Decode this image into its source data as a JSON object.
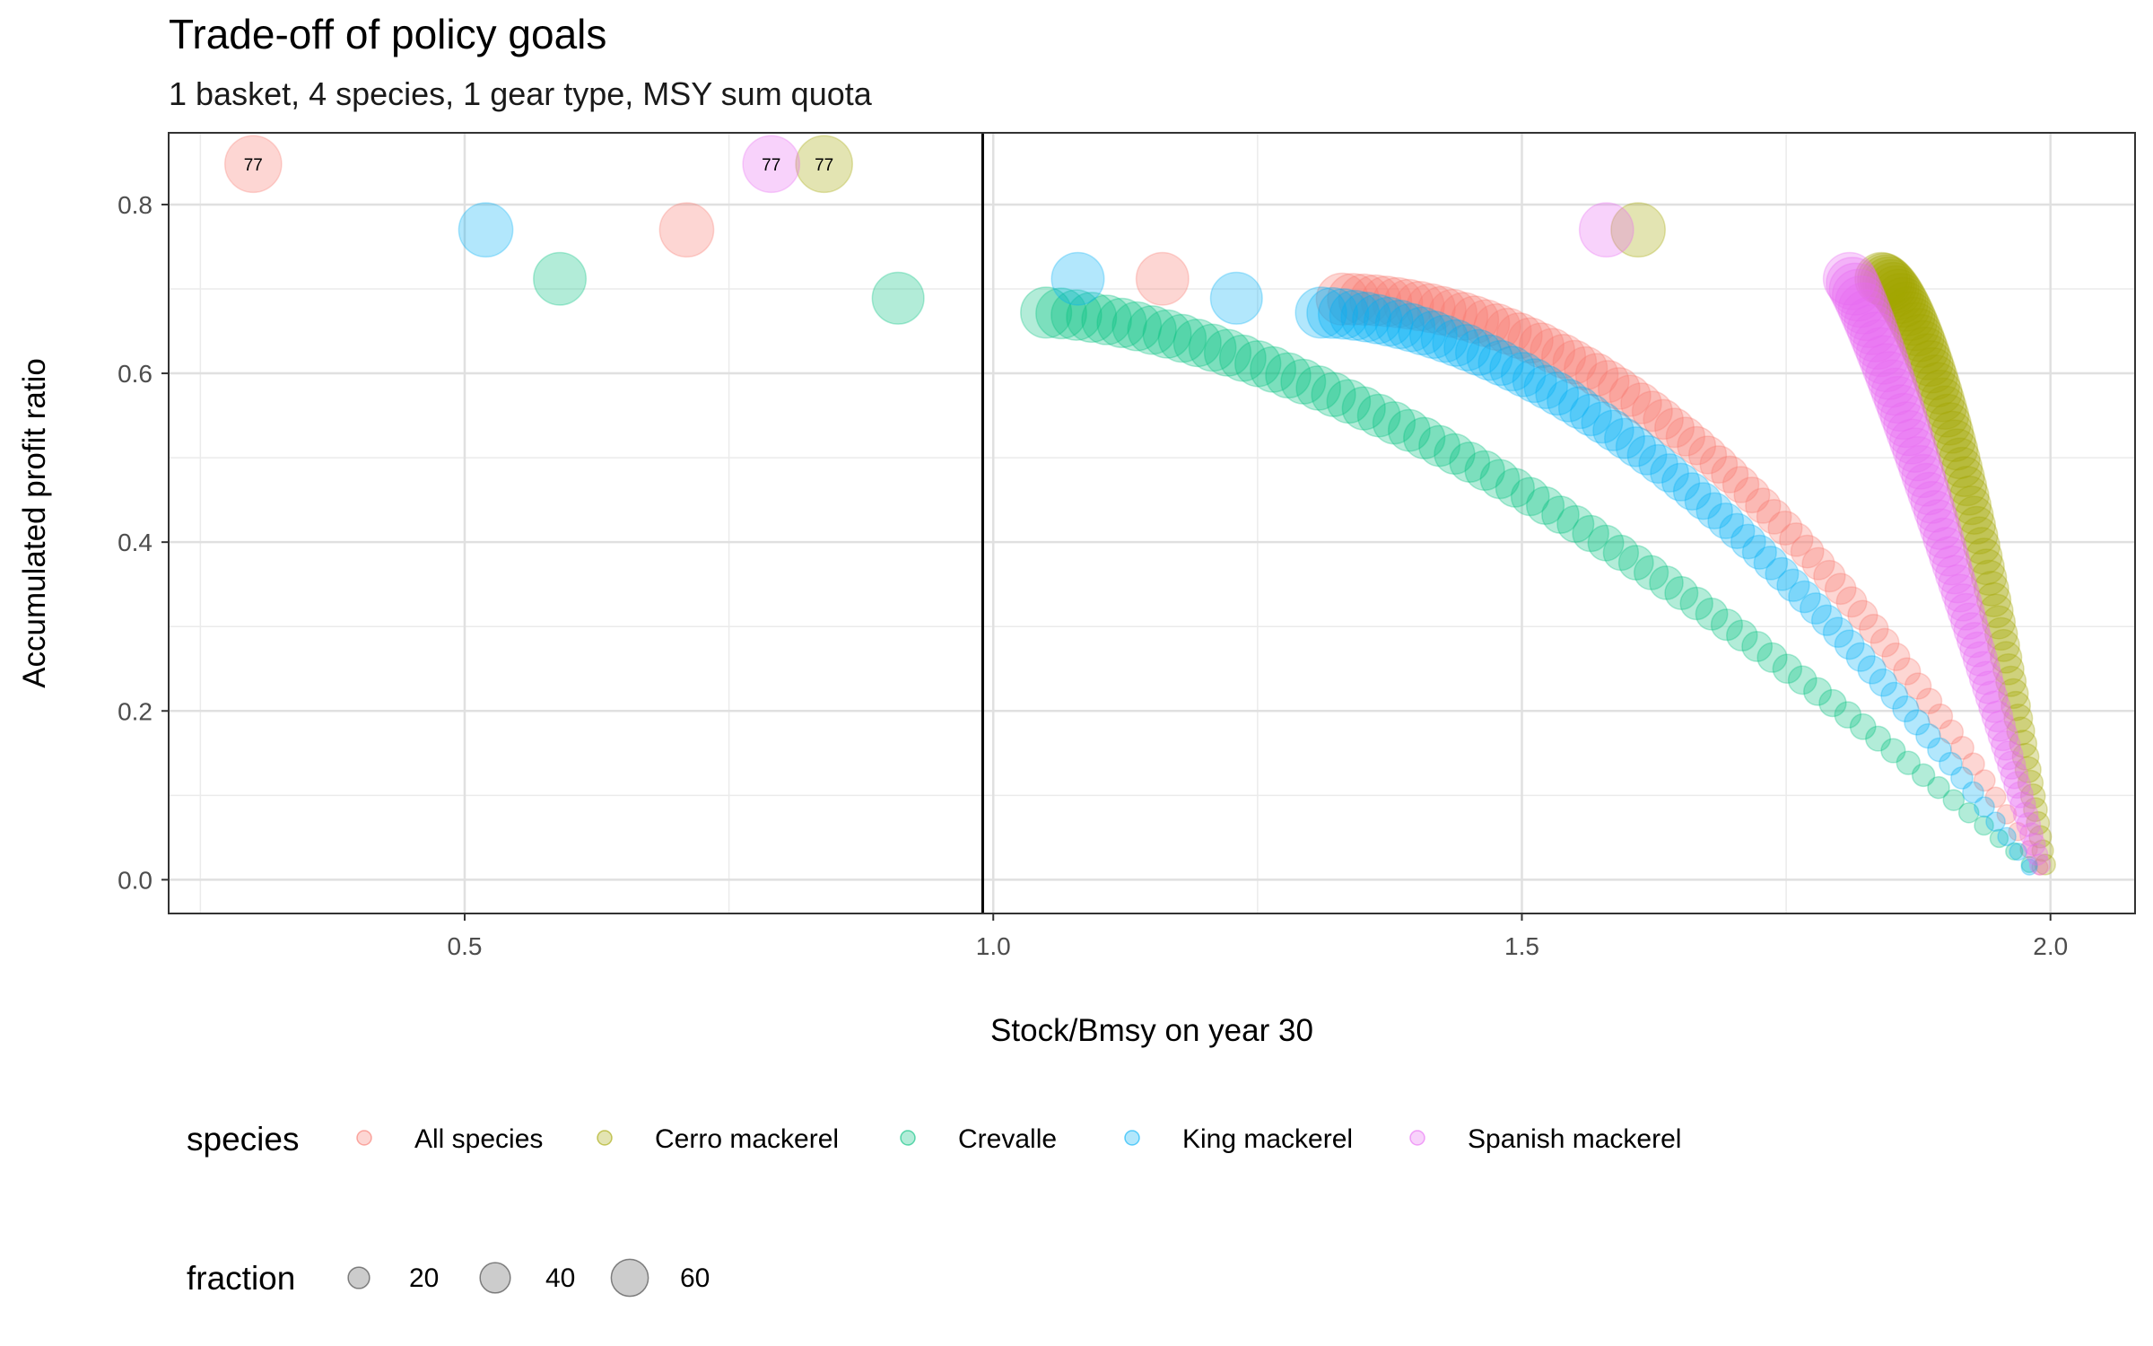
{
  "chart_data": {
    "type": "scatter",
    "title": "Trade-off of policy goals",
    "subtitle": "1 basket, 4 species, 1 gear type, MSY sum quota",
    "xlabel": "Stock/Bmsy on year 30",
    "ylabel": "Accumulated profit ratio",
    "xlim": [
      0.22,
      2.08
    ],
    "ylim": [
      -0.04,
      0.885
    ],
    "x_ticks": [
      0.5,
      1.0,
      1.5,
      2.0
    ],
    "x_tick_labels": [
      "0.5",
      "1.0",
      "1.5",
      "2.0"
    ],
    "y_ticks": [
      0.0,
      0.2,
      0.4,
      0.6,
      0.8
    ],
    "y_tick_labels": [
      "0.0",
      "0.2",
      "0.4",
      "0.6",
      "0.8"
    ],
    "reference_vline": 0.99,
    "grid": true,
    "point_alpha": 0.3,
    "point_label_text": "77",
    "point_size_trend": "fraction decreases as profit ratio decreases",
    "legend_position": "bottom",
    "legend_species": {
      "title": "species",
      "items": [
        {
          "label": "All species",
          "color": "#F8766D"
        },
        {
          "label": "Cerro mackerel",
          "color": "#A3A500"
        },
        {
          "label": "Crevalle",
          "color": "#00BF7D"
        },
        {
          "label": "King mackerel",
          "color": "#00B0F6"
        },
        {
          "label": "Spanish mackerel",
          "color": "#E76BF3"
        }
      ]
    },
    "legend_fraction": {
      "title": "fraction",
      "items": [
        {
          "label": "20",
          "value": 20
        },
        {
          "label": "40",
          "value": 40
        },
        {
          "label": "60",
          "value": 60
        }
      ]
    },
    "series": [
      {
        "name": "All species",
        "color": "#F8766D",
        "labeled_points": [
          {
            "x": 0.3,
            "y": 0.848,
            "fraction": 77,
            "label": "77"
          }
        ],
        "points": [
          {
            "x": 0.71,
            "y": 0.77,
            "fraction": 70
          },
          {
            "x": 1.16,
            "y": 0.712,
            "fraction": 66
          }
        ],
        "curve": {
          "x_start": 1.33,
          "x_end": 1.99,
          "y_start": 0.688,
          "y_end": 0.015,
          "exponent": 2.0,
          "count": 64,
          "f_start": 64,
          "f_end": 6
        }
      },
      {
        "name": "Cerro mackerel",
        "color": "#A3A500",
        "labeled_points": [
          {
            "x": 0.84,
            "y": 0.848,
            "fraction": 77,
            "label": "77"
          }
        ],
        "points": [
          {
            "x": 1.61,
            "y": 0.77,
            "fraction": 70
          }
        ],
        "curve": {
          "x_start": 1.84,
          "x_end": 1.995,
          "y_start": 0.712,
          "y_end": 0.018,
          "exponent": 1.6,
          "count": 68,
          "f_start": 66,
          "f_end": 10
        }
      },
      {
        "name": "Crevalle",
        "color": "#00BF7D",
        "labeled_points": [],
        "points": [
          {
            "x": 0.59,
            "y": 0.712,
            "fraction": 66
          },
          {
            "x": 0.91,
            "y": 0.689,
            "fraction": 64
          }
        ],
        "curve": {
          "x_start": 1.05,
          "x_end": 1.98,
          "y_start": 0.672,
          "y_end": 0.018,
          "exponent": 1.55,
          "count": 66,
          "f_start": 62,
          "f_end": 6
        }
      },
      {
        "name": "King mackerel",
        "color": "#00B0F6",
        "labeled_points": [],
        "points": [
          {
            "x": 0.52,
            "y": 0.77,
            "fraction": 70
          },
          {
            "x": 1.08,
            "y": 0.712,
            "fraction": 66
          },
          {
            "x": 1.23,
            "y": 0.689,
            "fraction": 64
          }
        ],
        "curve": {
          "x_start": 1.31,
          "x_end": 1.98,
          "y_start": 0.672,
          "y_end": 0.015,
          "exponent": 1.75,
          "count": 64,
          "f_start": 62,
          "f_end": 6
        }
      },
      {
        "name": "Spanish mackerel",
        "color": "#E76BF3",
        "labeled_points": [
          {
            "x": 0.79,
            "y": 0.848,
            "fraction": 77,
            "label": "77"
          }
        ],
        "points": [
          {
            "x": 1.58,
            "y": 0.77,
            "fraction": 70
          }
        ],
        "curve": {
          "x_start": 1.81,
          "x_end": 1.99,
          "y_start": 0.712,
          "y_end": 0.018,
          "exponent": 1.15,
          "count": 68,
          "f_start": 66,
          "f_end": 10
        }
      }
    ]
  }
}
